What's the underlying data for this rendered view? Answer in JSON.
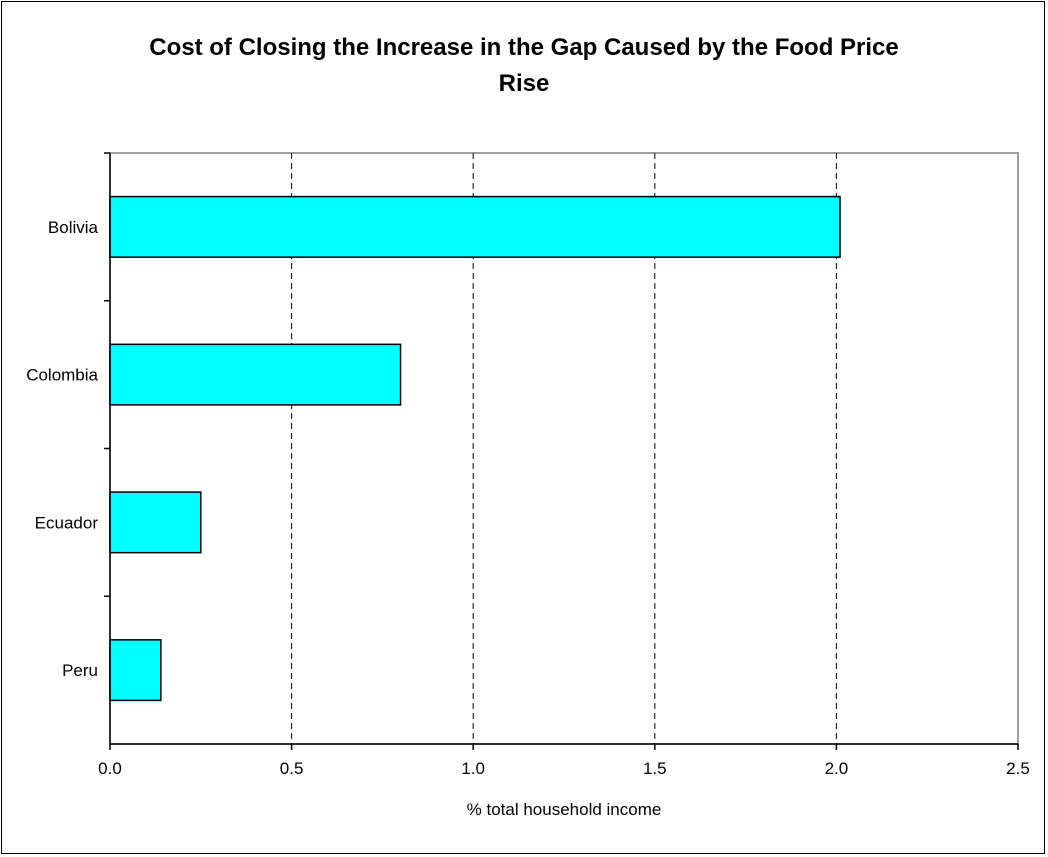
{
  "chart_data": {
    "type": "bar",
    "orientation": "horizontal",
    "title_lines": [
      "Cost of Closing the Increase in the Gap Caused by the Food Price",
      "Rise"
    ],
    "categories": [
      "Bolivia",
      "Colombia",
      "Ecuador",
      "Peru"
    ],
    "values": [
      2.01,
      0.8,
      0.25,
      0.14
    ],
    "xlabel": "% total household income",
    "ylabel": "",
    "xlim": [
      0,
      2.5
    ],
    "xticks": [
      0.0,
      0.5,
      1.0,
      1.5,
      2.0,
      2.5
    ],
    "xtick_labels": [
      "0.0",
      "0.5",
      "1.0",
      "1.5",
      "2.0",
      "2.5"
    ],
    "grid": "vertical dashed",
    "legend": "none",
    "bar_color": "#00FFFF",
    "bar_edge_color": "#000000"
  }
}
